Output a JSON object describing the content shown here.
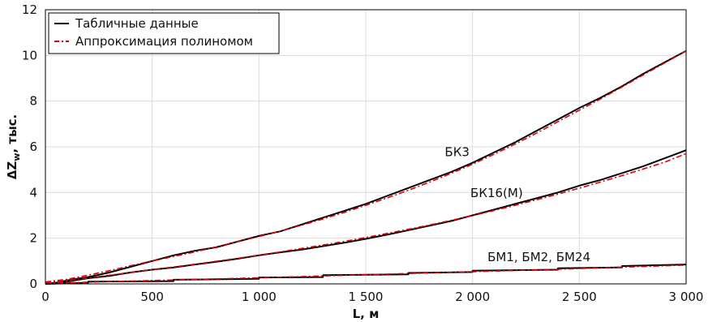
{
  "chart_data": {
    "type": "line",
    "xlabel": "L, м",
    "ylabel_main": "ΔZ",
    "ylabel_sub": "w",
    "ylabel_rest": ", тыс.",
    "xlim": [
      0,
      3000
    ],
    "ylim": [
      0,
      12
    ],
    "x_ticks": [
      0,
      500,
      1000,
      1500,
      2000,
      2500,
      3000
    ],
    "x_tick_labels": [
      "0",
      "500",
      "1 000",
      "1 500",
      "2 000",
      "2 500",
      "3 000"
    ],
    "y_ticks": [
      0,
      2,
      4,
      6,
      8,
      10,
      12
    ],
    "y_tick_labels": [
      "0",
      "2",
      "4",
      "6",
      "8",
      "10",
      "12"
    ],
    "grid": true,
    "legend": {
      "placement": "top-left",
      "entries": [
        {
          "label": "Табличные данные",
          "color": "#000000",
          "style": "solid"
        },
        {
          "label": "Аппроксимация полиномом",
          "color": "#e0000a",
          "style": "dashdot"
        }
      ]
    },
    "annotations": [
      {
        "text": "БК3",
        "x": 1870,
        "y": 5.6
      },
      {
        "text": "БК16(М)",
        "x": 1990,
        "y": 3.8
      },
      {
        "text": "БМ1, БМ2, БМ24",
        "x": 2070,
        "y": 1.0
      }
    ],
    "series": [
      {
        "group": "БК3",
        "kind": "table",
        "x": [
          0,
          50,
          100,
          200,
          300,
          400,
          500,
          600,
          700,
          800,
          900,
          1000,
          1100,
          1200,
          1300,
          1400,
          1500,
          1600,
          1700,
          1800,
          1900,
          2000,
          2100,
          2200,
          2300,
          2400,
          2500,
          2600,
          2700,
          2800,
          2900,
          3000
        ],
        "y": [
          0.0,
          0.05,
          0.15,
          0.3,
          0.5,
          0.75,
          1.0,
          1.25,
          1.45,
          1.6,
          1.85,
          2.1,
          2.3,
          2.6,
          2.9,
          3.2,
          3.5,
          3.85,
          4.2,
          4.55,
          4.9,
          5.3,
          5.75,
          6.2,
          6.7,
          7.2,
          7.7,
          8.15,
          8.65,
          9.2,
          9.7,
          10.2
        ]
      },
      {
        "group": "БК3",
        "kind": "approx",
        "x": [
          0,
          100,
          200,
          300,
          400,
          500,
          600,
          700,
          800,
          900,
          1000,
          1100,
          1200,
          1300,
          1400,
          1500,
          1600,
          1700,
          1800,
          1900,
          2000,
          2100,
          2200,
          2300,
          2400,
          2500,
          2600,
          2700,
          2800,
          2900,
          3000
        ],
        "y": [
          0.08,
          0.2,
          0.38,
          0.58,
          0.8,
          1.0,
          1.2,
          1.4,
          1.62,
          1.85,
          2.07,
          2.31,
          2.57,
          2.84,
          3.13,
          3.44,
          3.76,
          4.1,
          4.46,
          4.84,
          5.24,
          5.67,
          6.12,
          6.6,
          7.1,
          7.6,
          8.1,
          8.62,
          9.15,
          9.67,
          10.2
        ]
      },
      {
        "group": "БК16(М)",
        "kind": "table",
        "x": [
          0,
          100,
          200,
          300,
          400,
          500,
          600,
          700,
          800,
          900,
          1000,
          1100,
          1200,
          1300,
          1400,
          1500,
          1600,
          1700,
          1800,
          1900,
          2000,
          2100,
          2200,
          2300,
          2400,
          2500,
          2600,
          2700,
          2800,
          2900,
          3000
        ],
        "y": [
          0.0,
          0.1,
          0.25,
          0.35,
          0.5,
          0.62,
          0.72,
          0.85,
          0.97,
          1.1,
          1.25,
          1.38,
          1.5,
          1.65,
          1.8,
          1.97,
          2.15,
          2.35,
          2.55,
          2.75,
          3.0,
          3.25,
          3.5,
          3.75,
          4.0,
          4.3,
          4.55,
          4.85,
          5.15,
          5.5,
          5.85
        ]
      },
      {
        "group": "БК16(М)",
        "kind": "approx",
        "x": [
          0,
          100,
          200,
          300,
          400,
          500,
          600,
          700,
          800,
          900,
          1000,
          1100,
          1200,
          1300,
          1400,
          1500,
          1600,
          1700,
          1800,
          1900,
          2000,
          2100,
          2200,
          2300,
          2400,
          2500,
          2600,
          2700,
          2800,
          2900,
          3000
        ],
        "y": [
          0.05,
          0.14,
          0.26,
          0.38,
          0.5,
          0.62,
          0.74,
          0.86,
          0.99,
          1.12,
          1.26,
          1.4,
          1.55,
          1.7,
          1.86,
          2.03,
          2.21,
          2.39,
          2.58,
          2.78,
          2.99,
          3.21,
          3.44,
          3.68,
          3.93,
          4.19,
          4.46,
          4.74,
          5.03,
          5.33,
          5.7
        ]
      },
      {
        "group": "БМ1, БМ2, БМ24",
        "kind": "table",
        "x": [
          0,
          200,
          200,
          600,
          600,
          1000,
          1000,
          1300,
          1300,
          1700,
          1700,
          2000,
          2000,
          2400,
          2400,
          2700,
          2700,
          3000
        ],
        "y": [
          0.0,
          0.05,
          0.1,
          0.12,
          0.18,
          0.22,
          0.28,
          0.3,
          0.38,
          0.42,
          0.48,
          0.52,
          0.58,
          0.62,
          0.68,
          0.72,
          0.78,
          0.85
        ]
      },
      {
        "group": "БМ1, БМ2, БМ24",
        "kind": "approx",
        "x": [
          0,
          300,
          600,
          900,
          1200,
          1500,
          1800,
          2100,
          2400,
          2700,
          3000
        ],
        "y": [
          0.02,
          0.1,
          0.17,
          0.24,
          0.32,
          0.4,
          0.48,
          0.56,
          0.64,
          0.73,
          0.82
        ]
      }
    ]
  }
}
